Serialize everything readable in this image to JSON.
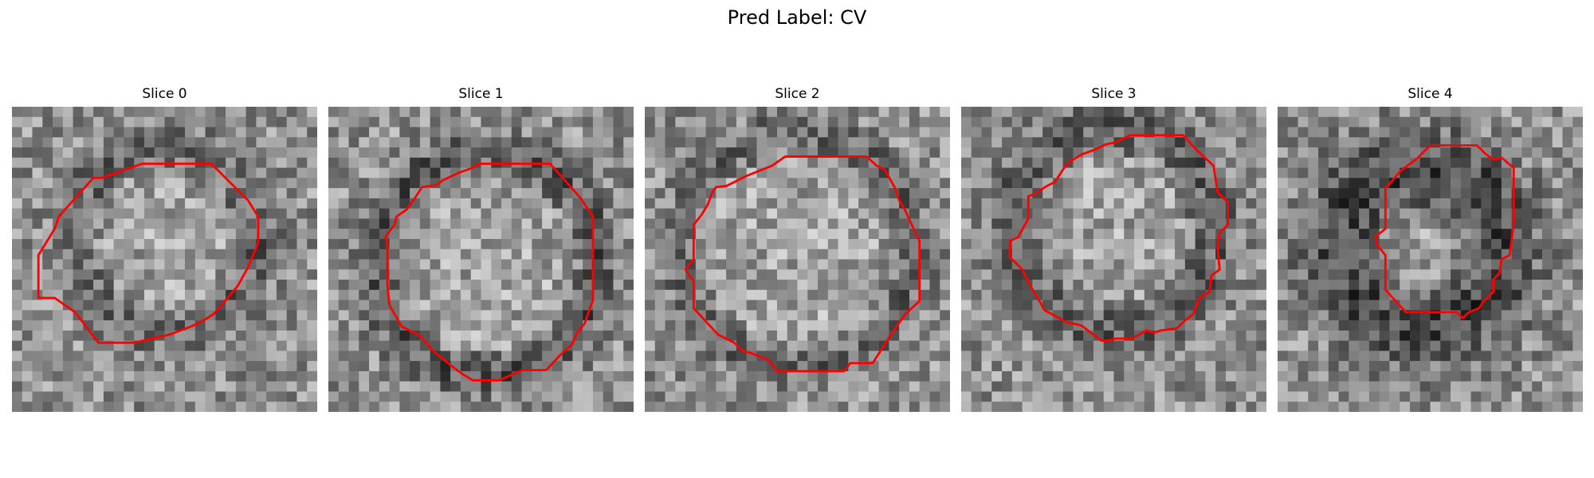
{
  "figure": {
    "title": "Pred Label: CV"
  },
  "slices": [
    {
      "label": "Slice 0",
      "outline": "contour-0"
    },
    {
      "label": "Slice 1",
      "outline": "contour-1"
    },
    {
      "label": "Slice 2",
      "outline": "contour-2"
    },
    {
      "label": "Slice 3",
      "outline": "contour-3"
    },
    {
      "label": "Slice 4",
      "outline": "contour-4"
    }
  ],
  "colors": {
    "contour": "#ff0000",
    "background": "#ffffff"
  }
}
